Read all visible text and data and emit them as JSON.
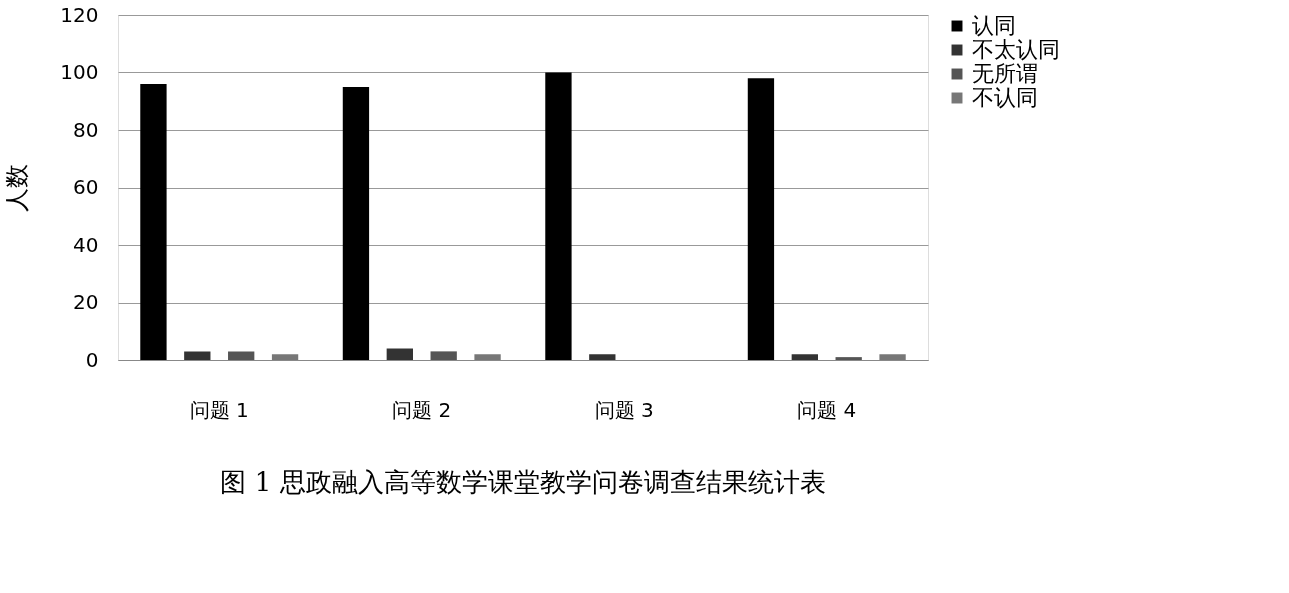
{
  "chart_data": {
    "type": "bar",
    "title": "图 1 思政融入高等数学课堂教学问卷调查结果统计表",
    "ylabel": "人数",
    "categories": [
      "问题 1",
      "问题 2",
      "问题 3",
      "问题 4"
    ],
    "series": [
      {
        "name": "认同",
        "color": "#000000",
        "values": [
          96,
          95,
          100,
          98
        ]
      },
      {
        "name": "不太认同",
        "color": "#333333",
        "values": [
          3,
          4,
          2,
          2
        ]
      },
      {
        "name": "无所谓",
        "color": "#555555",
        "values": [
          3,
          3,
          0,
          1
        ]
      },
      {
        "name": "不认同",
        "color": "#777777",
        "values": [
          2,
          2,
          0,
          2
        ]
      }
    ],
    "ylim": [
      0,
      120
    ],
    "yticks": [
      0,
      20,
      40,
      60,
      80,
      100,
      120
    ],
    "grid": "y",
    "legend": "right"
  }
}
